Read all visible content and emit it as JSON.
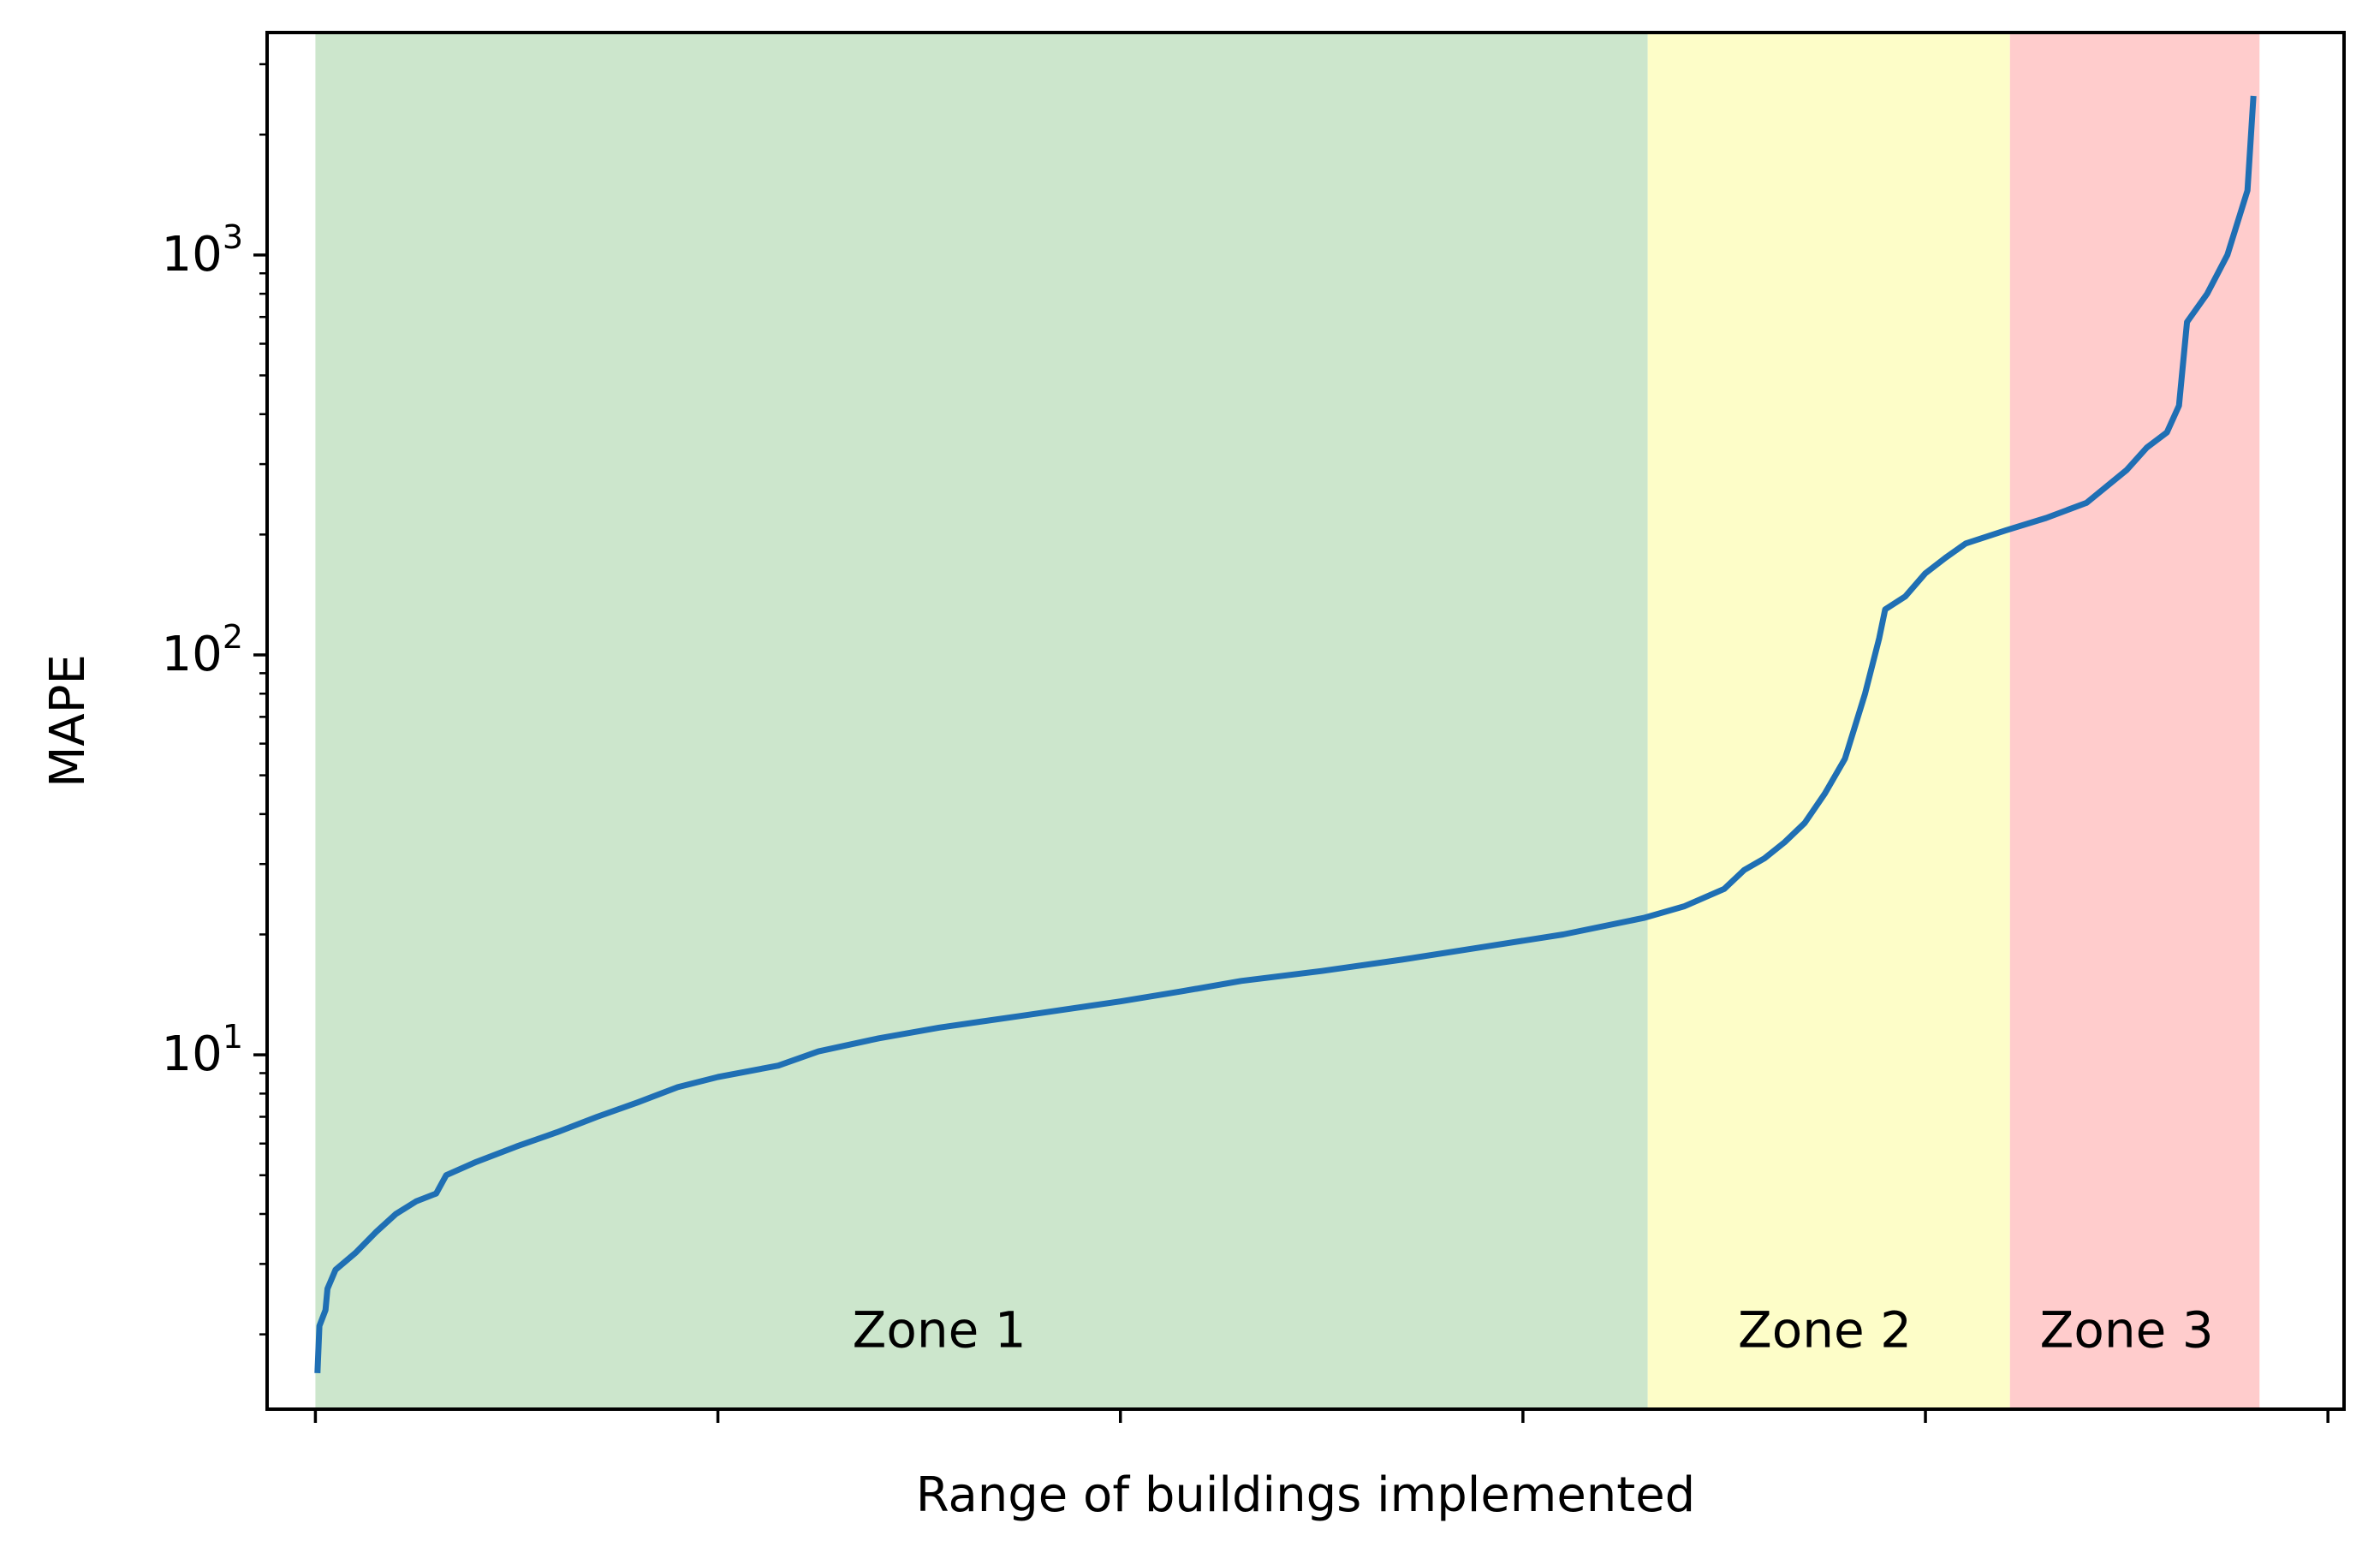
{
  "chart_data": {
    "type": "line",
    "xlabel": "Range of buildings implemented",
    "ylabel": "MAPE",
    "yscale": "log",
    "xlim": [
      -2.4,
      100.8
    ],
    "ylim": [
      1.3,
      3600
    ],
    "x_ticks": [
      0,
      20,
      40,
      60,
      80,
      100
    ],
    "y_ticks": [
      {
        "value": 10,
        "base": "10",
        "exp": "1"
      },
      {
        "value": 100,
        "base": "10",
        "exp": "2"
      },
      {
        "value": 1000,
        "base": "10",
        "exp": "3"
      }
    ],
    "grid": false,
    "legend": "none",
    "zones": [
      {
        "label": "Zone 1",
        "x_start": 0,
        "x_end": 66.2,
        "color": "#cce6cc",
        "label_x": 31,
        "label_y": 2.05
      },
      {
        "label": "Zone 2",
        "x_start": 66.2,
        "x_end": 84.2,
        "color": "#fdfdc8",
        "label_x": 75,
        "label_y": 2.05
      },
      {
        "label": "Zone 3",
        "x_start": 84.2,
        "x_end": 96.6,
        "color": "#ffcccc",
        "label_x": 90,
        "label_y": 2.05
      }
    ],
    "series": [
      {
        "color": "#1f6fb4",
        "points": [
          [
            0.1,
            1.6
          ],
          [
            0.2,
            2.1
          ],
          [
            0.5,
            2.3
          ],
          [
            0.6,
            2.6
          ],
          [
            1.0,
            2.9
          ],
          [
            2.0,
            3.2
          ],
          [
            3.0,
            3.6
          ],
          [
            4.0,
            4.0
          ],
          [
            5.0,
            4.3
          ],
          [
            6.0,
            4.5
          ],
          [
            6.5,
            5.0
          ],
          [
            8.0,
            5.4
          ],
          [
            10.0,
            5.9
          ],
          [
            12.0,
            6.4
          ],
          [
            14.0,
            7.0
          ],
          [
            16.0,
            7.6
          ],
          [
            18.0,
            8.3
          ],
          [
            20.0,
            8.8
          ],
          [
            23.0,
            9.4
          ],
          [
            25.0,
            10.2
          ],
          [
            28.0,
            11.0
          ],
          [
            31.0,
            11.7
          ],
          [
            35.0,
            12.5
          ],
          [
            40.0,
            13.6
          ],
          [
            43.0,
            14.4
          ],
          [
            46.0,
            15.3
          ],
          [
            50.0,
            16.2
          ],
          [
            54.0,
            17.3
          ],
          [
            58.0,
            18.6
          ],
          [
            62.0,
            20.0
          ],
          [
            66.0,
            22.0
          ],
          [
            68.0,
            23.5
          ],
          [
            70.0,
            26.0
          ],
          [
            71.0,
            29.0
          ],
          [
            72.0,
            31.0
          ],
          [
            73.0,
            34.0
          ],
          [
            74.0,
            38.0
          ],
          [
            75.0,
            45.0
          ],
          [
            76.0,
            55.0
          ],
          [
            77.0,
            80.0
          ],
          [
            77.7,
            110.0
          ],
          [
            78.0,
            130.0
          ],
          [
            79.0,
            140.0
          ],
          [
            80.0,
            160.0
          ],
          [
            81.0,
            175.0
          ],
          [
            82.0,
            190.0
          ],
          [
            84.0,
            205.0
          ],
          [
            86.0,
            220.0
          ],
          [
            88.0,
            240.0
          ],
          [
            90.0,
            290.0
          ],
          [
            91.0,
            330.0
          ],
          [
            92.0,
            360.0
          ],
          [
            92.6,
            420.0
          ],
          [
            93.0,
            680.0
          ],
          [
            94.0,
            800.0
          ],
          [
            95.0,
            1000.0
          ],
          [
            96.0,
            1450.0
          ],
          [
            96.3,
            2500.0
          ]
        ]
      }
    ]
  }
}
